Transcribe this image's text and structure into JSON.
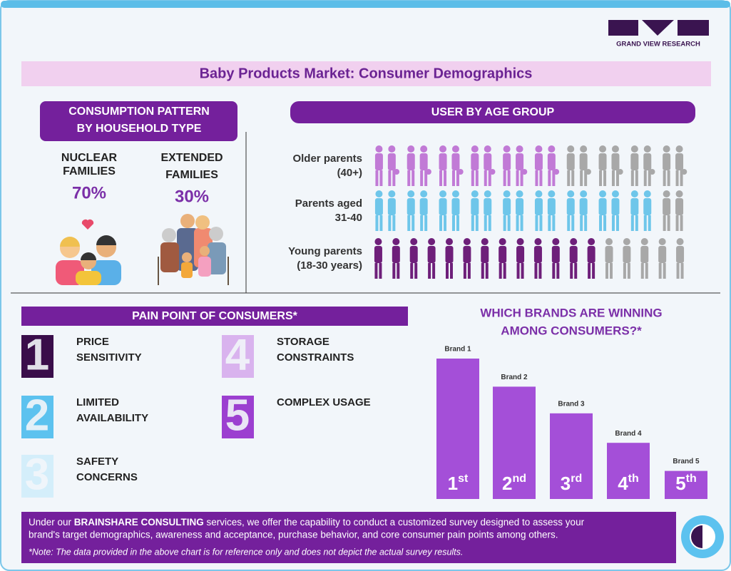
{
  "header": {
    "brand": "GRAND VIEW RESEARCH",
    "title": "Baby Products Market: Consumer Demographics"
  },
  "household": {
    "title_lines": [
      "CONSUMPTION PATTERN",
      "BY HOUSEHOLD TYPE"
    ],
    "items": [
      {
        "label_lines": [
          "NUCLEAR",
          "FAMILIES"
        ],
        "share": "70%"
      },
      {
        "label_lines": [
          "EXTENDED",
          "FAMILIES"
        ],
        "share": "30%"
      }
    ]
  },
  "age_group": {
    "title": "USER BY AGE GROUP",
    "rows": [
      {
        "label_lines": [
          "Older parents",
          "(40+)"
        ],
        "filled": 6,
        "total": 10,
        "color": "#c17ad6"
      },
      {
        "label_lines": [
          "Parents aged",
          "31-40"
        ],
        "filled": 9,
        "total": 10,
        "color": "#6ec6ea"
      },
      {
        "label_lines": [
          "Young parents",
          "(18-30 years)"
        ],
        "filled": 13,
        "total": 18,
        "color": "#6e1f7a"
      }
    ]
  },
  "pain_points": {
    "title": "PAIN POINT OF CONSUMERS*",
    "items": [
      {
        "number": "1",
        "label_lines": [
          "PRICE",
          "SENSITIVITY"
        ],
        "color": "#3a0d4a"
      },
      {
        "number": "2",
        "label_lines": [
          "LIMITED",
          "AVAILABILITY"
        ],
        "color": "#5cc2ef"
      },
      {
        "number": "3",
        "label_lines": [
          "SAFETY",
          "CONCERNS"
        ],
        "color": "#d4eefa"
      },
      {
        "number": "4",
        "label_lines": [
          "STORAGE",
          "CONSTRAINTS"
        ],
        "color": "#d9b3ee"
      },
      {
        "number": "5",
        "label_lines": [
          "COMPLEX USAGE"
        ],
        "color": "#9c3fd0"
      }
    ]
  },
  "chart_data": {
    "type": "bar",
    "title_lines": [
      "WHICH BRANDS ARE WINNING",
      "AMONG CONSUMERS?*"
    ],
    "categories": [
      "Brand 1",
      "Brand 2",
      "Brand 3",
      "Brand 4",
      "Brand 5"
    ],
    "values": [
      100,
      80,
      61,
      40,
      20
    ],
    "color": "#a44fd8",
    "ranks": [
      {
        "num": "1",
        "suffix": "st"
      },
      {
        "num": "2",
        "suffix": "nd"
      },
      {
        "num": "3",
        "suffix": "rd"
      },
      {
        "num": "4",
        "suffix": "th"
      },
      {
        "num": "5",
        "suffix": "th"
      }
    ]
  },
  "footer": {
    "text_parts": [
      "Under our ",
      "BRAINSHARE CONSULTING",
      " services, we offer the capability to conduct a customized survey designed to assess your"
    ],
    "text_line2": "brand's target demographics, awareness and acceptance, purchase behavior, and core consumer pain points among others.",
    "note": "*Note: The data provided in the above chart is for reference only and does not depict the actual survey results."
  }
}
